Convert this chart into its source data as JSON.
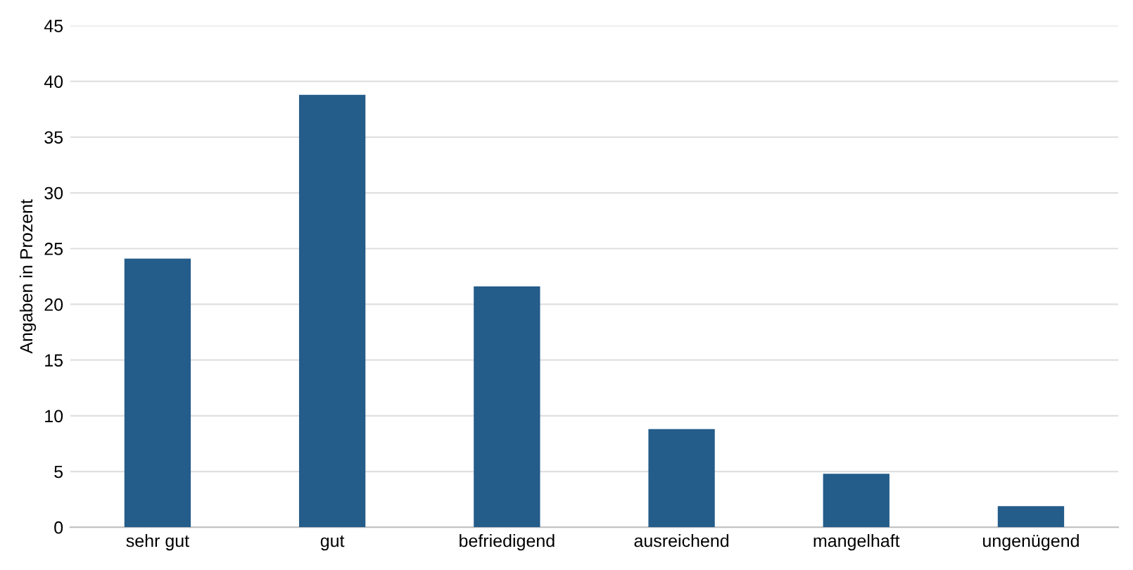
{
  "chart_data": {
    "type": "bar",
    "ylabel": "Angaben in Prozent",
    "categories": [
      "sehr gut",
      "gut",
      "befriedigend",
      "ausreichend",
      "mangelhaft",
      "ungenügend"
    ],
    "values": [
      24.1,
      38.8,
      21.6,
      8.8,
      4.8,
      1.9
    ],
    "color": "#245c8a",
    "ylim": [
      0,
      45
    ],
    "yticks": [
      0,
      5,
      10,
      15,
      20,
      25,
      30,
      35,
      40,
      45
    ],
    "grid": "y"
  }
}
